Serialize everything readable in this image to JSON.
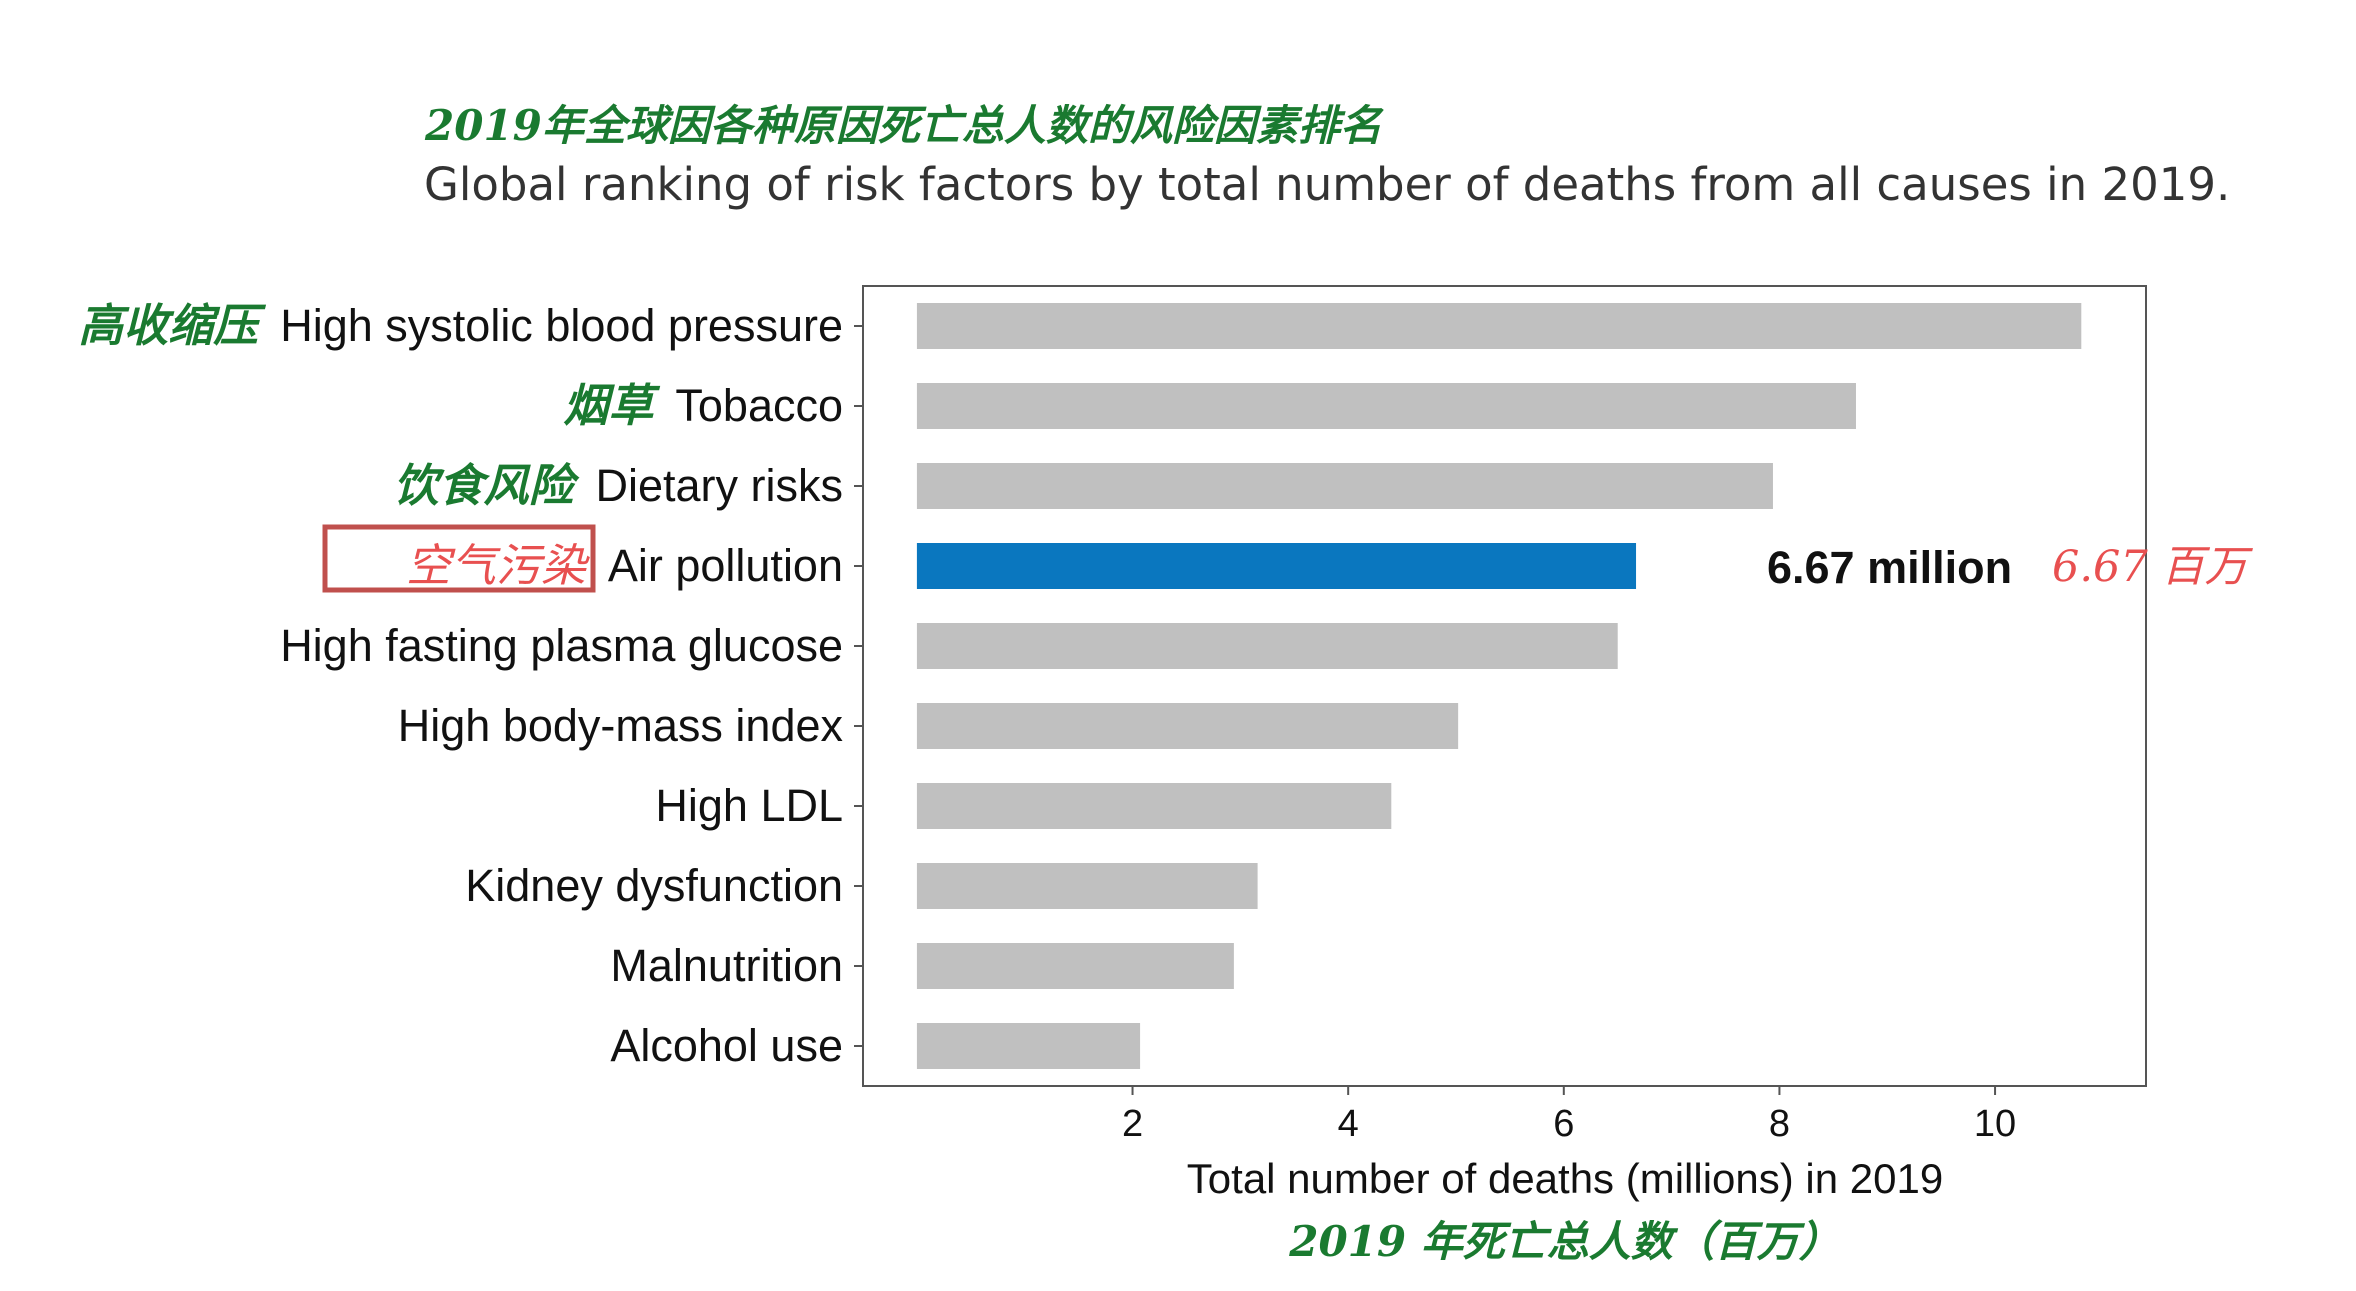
{
  "title_cn": "2019年全球因各种原因死亡总人数的风险因素排名",
  "title_en": "Global ranking of risk factors by total number of deaths from all causes in 2019.",
  "colors": {
    "bar": "#c0c0c0",
    "highlight_bar": "#0a77bf",
    "cn_text": "#1a7a30",
    "highlight_text": "#e85050",
    "highlight_box": "#c0504d"
  },
  "chart_data": {
    "type": "bar",
    "orientation": "horizontal",
    "categories": [
      "High systolic blood pressure",
      "Tobacco",
      "Dietary risks",
      "Air pollution",
      "High fasting plasma glucose",
      "High body-mass index",
      "High LDL",
      "Kidney dysfunction",
      "Malnutrition",
      "Alcohol use"
    ],
    "categories_cn": [
      "高收缩压",
      "烟草",
      "饮食风险",
      "空气污染",
      "",
      "",
      "",
      "",
      "",
      ""
    ],
    "values": [
      10.8,
      8.71,
      7.94,
      6.67,
      6.5,
      5.02,
      4.4,
      3.16,
      2.94,
      2.07
    ],
    "highlight_index": 3,
    "highlight_label_en": "6.67 million",
    "highlight_label_cn": "6.67 百万",
    "xlabel": "Total number of deaths (millions) in 2019",
    "xlabel_cn": "2019 年死亡总人数（百万）",
    "xticks": [
      2,
      4,
      6,
      8,
      10
    ],
    "xlim": [
      -0.5,
      11.4
    ]
  }
}
